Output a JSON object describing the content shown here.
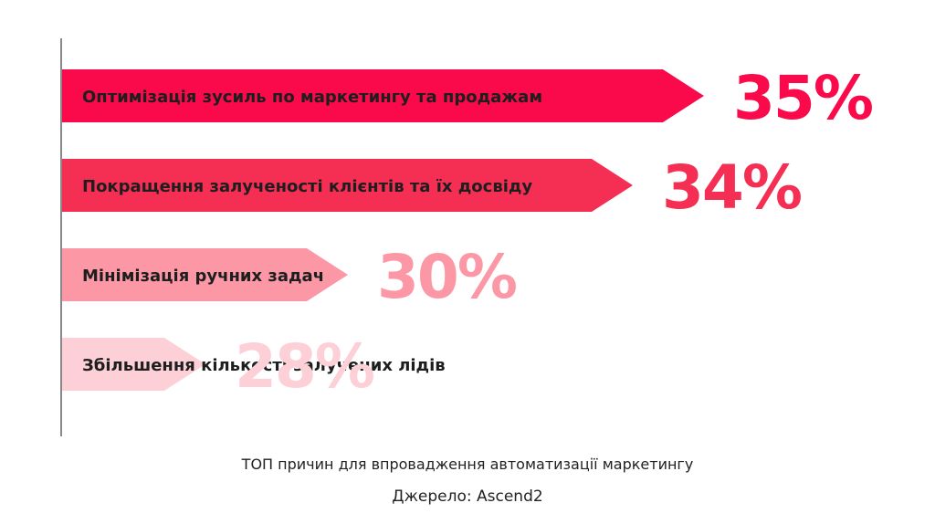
{
  "chart_data": {
    "type": "bar",
    "orientation": "horizontal",
    "categories": [
      "Оптимізація зусиль по маркетингу та продажам",
      "Покращення залученості клієнтів та їх досвіду",
      "Мінімізація ручних задач",
      "Збільшення кількості залучених лідів"
    ],
    "values": [
      35,
      34,
      30,
      28
    ],
    "value_labels": [
      "35%",
      "34%",
      "30%",
      "28%"
    ],
    "colors": [
      "#fa0a4a",
      "#f52e53",
      "#fc97a6",
      "#fdd0d8"
    ],
    "title": "ТОП причин для впровадження автоматизації маркетингу",
    "source": "Джерело: Ascend2"
  }
}
